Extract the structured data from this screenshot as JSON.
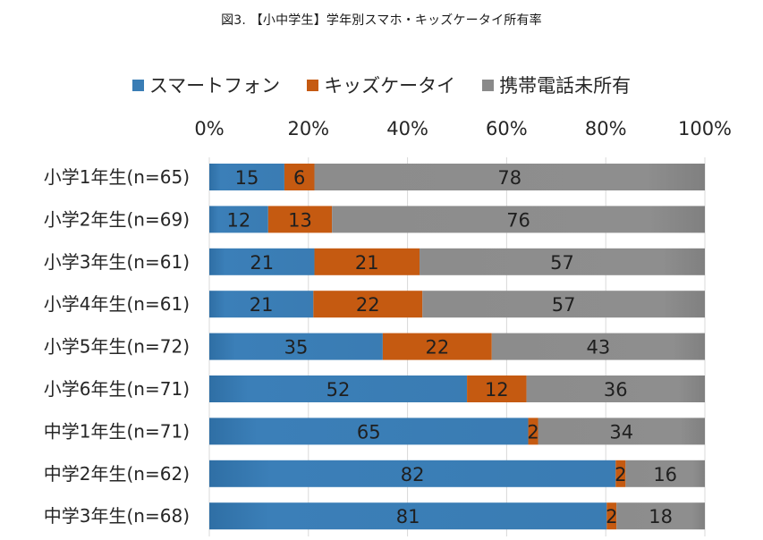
{
  "chart_data": {
    "type": "bar",
    "orientation": "horizontal",
    "stacked": "percent",
    "title": "図3. 【小中学生】学年別スマホ・キッズケータイ所有率",
    "xlabel": "",
    "ylabel": "",
    "xlim": [
      0,
      100
    ],
    "x_ticks": [
      "0%",
      "20%",
      "40%",
      "60%",
      "80%",
      "100%"
    ],
    "x_tick_values": [
      0,
      20,
      40,
      60,
      80,
      100
    ],
    "grid": true,
    "legend_position": "top",
    "categories": [
      "小学1年生(n=65)",
      "小学2年生(n=69)",
      "小学3年生(n=61)",
      "小学4年生(n=61)",
      "小学5年生(n=72)",
      "小学6年生(n=71)",
      "中学1年生(n=71)",
      "中学2年生(n=62)",
      "中学3年生(n=68)"
    ],
    "series": [
      {
        "name": "スマートフォン",
        "color": "#3a7db5",
        "values": [
          15,
          12,
          21,
          21,
          35,
          52,
          65,
          82,
          81
        ]
      },
      {
        "name": "キッズケータイ",
        "color": "#c55a11",
        "values": [
          6,
          13,
          21,
          22,
          22,
          12,
          2,
          2,
          2
        ]
      },
      {
        "name": "携帯電話未所有",
        "color": "#8a8a8a",
        "values": [
          78,
          76,
          57,
          57,
          43,
          36,
          34,
          16,
          18
        ]
      }
    ]
  }
}
